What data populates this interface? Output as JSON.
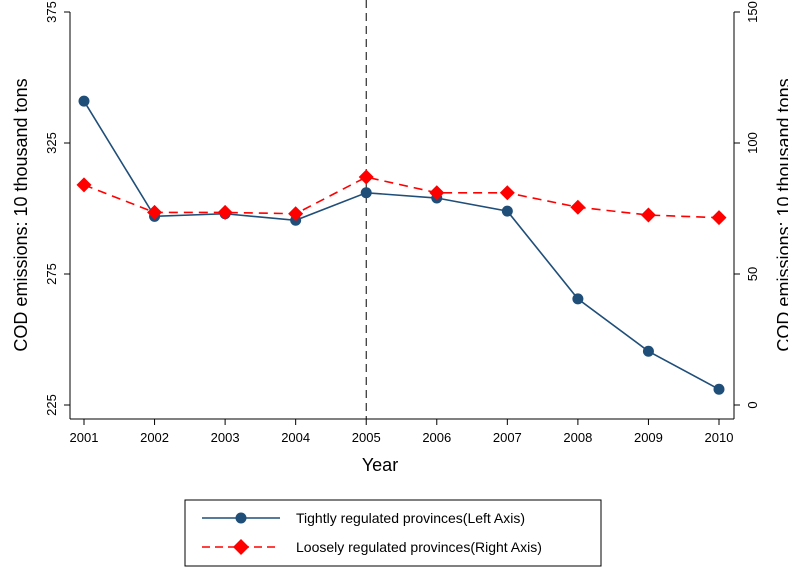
{
  "chart_data": {
    "type": "line",
    "x": [
      2001,
      2002,
      2003,
      2004,
      2005,
      2006,
      2007,
      2008,
      2009,
      2010
    ],
    "xlabel": "Year",
    "ylabel_left": "COD emissions: 10 thousand tons",
    "ylabel_right": "COD emissions: 10 thousand tons",
    "ylim_left": [
      225,
      375
    ],
    "yticks_left": [
      225,
      275,
      325,
      375
    ],
    "ylim_right": [
      0,
      150
    ],
    "yticks_right": [
      0,
      50,
      100,
      150
    ],
    "vertical_reference_line": 2005,
    "grid": false,
    "legend_position": "bottom",
    "series": [
      {
        "name": "Tightly regulated provinces(Left Axis)",
        "axis": "left",
        "color": "#1f4e79",
        "line_style": "solid",
        "marker": "circle",
        "values": [
          341,
          297,
          298,
          295.5,
          306,
          304,
          299,
          265.5,
          245.5,
          231
        ]
      },
      {
        "name": "Loosely regulated provinces(Right Axis)",
        "axis": "right",
        "color": "#ff0000",
        "line_style": "dashed",
        "marker": "diamond",
        "values": [
          84,
          73.5,
          73.5,
          73,
          87,
          81,
          81,
          75.5,
          72.5,
          71.5
        ]
      }
    ]
  }
}
